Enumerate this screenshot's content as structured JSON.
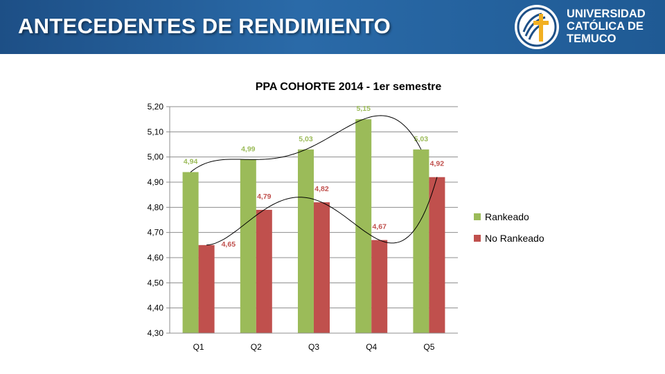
{
  "header": {
    "title": "ANTECEDENTES DE RENDIMIENTO",
    "logo_lines": [
      "UNIVERSIDAD",
      "CATÓLICA DE",
      "TEMUCO"
    ]
  },
  "colors": {
    "header_bg": "#1f5a94",
    "rankeado": "#9bbb59",
    "no_rankeado": "#c0504d",
    "logo_blue": "#1d4f86",
    "logo_gold": "#f2b022"
  },
  "chart_data": {
    "type": "bar",
    "title": "PPA COHORTE 2014 - 1er semestre",
    "categories": [
      "Q1",
      "Q2",
      "Q3",
      "Q4",
      "Q5"
    ],
    "series": [
      {
        "name": "Rankeado",
        "values": [
          4.94,
          4.99,
          5.03,
          5.15,
          5.03
        ],
        "labels": [
          "4,94",
          "4,99",
          "5,03",
          "5,15",
          "5,03"
        ],
        "color": "#9bbb59"
      },
      {
        "name": "No Rankeado",
        "values": [
          4.65,
          4.79,
          4.82,
          4.67,
          4.92
        ],
        "labels": [
          "4,65",
          "4,79",
          "4,82",
          "4,67",
          "4,92"
        ],
        "color": "#c0504d"
      }
    ],
    "ylim": [
      4.3,
      5.2
    ],
    "yticks": [
      "4,30",
      "4,40",
      "4,50",
      "4,60",
      "4,70",
      "4,80",
      "4,90",
      "5,00",
      "5,10",
      "5,20"
    ],
    "grid": true,
    "legend_position": "right",
    "trendlines": "polynomial, one per series (black)"
  }
}
